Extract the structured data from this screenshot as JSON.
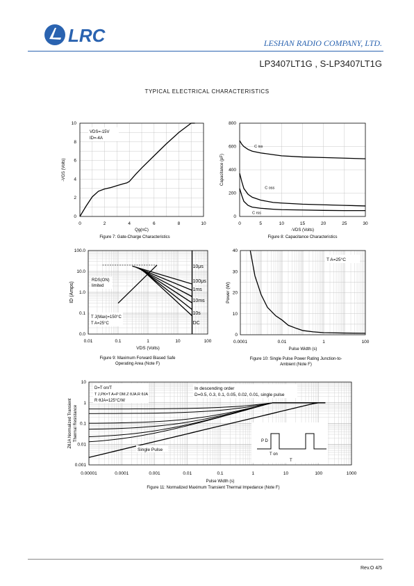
{
  "header": {
    "logo_text": "LRC",
    "company": "LESHAN RADIO COMPANY, LTD.",
    "part": "LP3407LT1G , S-LP3407LT1G"
  },
  "section_title": "TYPICAL ELECTRICAL CHARACTERISTICS",
  "chart_data": [
    {
      "id": "fig7",
      "type": "line",
      "title": "",
      "xlabel": "Qg(nC)",
      "ylabel": "-VGS (Volts)",
      "xlim": [
        0,
        10
      ],
      "ylim": [
        0,
        10
      ],
      "xticks": [
        "0",
        "2",
        "4",
        "6",
        "8",
        "10"
      ],
      "yticks": [
        "0",
        "2",
        "4",
        "6",
        "8",
        "10"
      ],
      "annotations": [
        "VDS=-15V",
        "ID=-4A"
      ],
      "caption": "Figure 7: Gate-Charge Characteristics",
      "series": [
        {
          "x": [
            0,
            0.5,
            1,
            1.5,
            2,
            2.5,
            3,
            3.5,
            3.8,
            4,
            4.5,
            5,
            6,
            7,
            8,
            9,
            9.3
          ],
          "y": [
            0,
            1.1,
            2.1,
            2.7,
            2.95,
            3.1,
            3.3,
            3.5,
            3.6,
            3.75,
            4.5,
            5.2,
            6.5,
            7.8,
            9,
            10,
            10.3
          ]
        }
      ]
    },
    {
      "id": "fig8",
      "type": "line",
      "title": "",
      "xlabel": "-VDS (Volts)",
      "ylabel": "Capacitance (pF)",
      "xlim": [
        0,
        30
      ],
      "ylim": [
        0,
        800
      ],
      "xticks": [
        "0",
        "5",
        "10",
        "15",
        "20",
        "25",
        "30"
      ],
      "yticks": [
        "0",
        "200",
        "400",
        "600",
        "800"
      ],
      "caption": "Figure 8: Capacitance Characteristics",
      "series": [
        {
          "name": "C iss",
          "x": [
            0,
            0.5,
            1,
            2,
            3,
            5,
            8,
            10,
            15,
            20,
            25,
            30
          ],
          "y": [
            650,
            620,
            600,
            575,
            560,
            545,
            530,
            520,
            510,
            505,
            500,
            495
          ]
        },
        {
          "name": "C oss",
          "x": [
            0,
            0.5,
            1,
            2,
            3,
            5,
            8,
            10,
            15,
            20,
            25,
            30
          ],
          "y": [
            370,
            300,
            240,
            190,
            165,
            140,
            120,
            115,
            105,
            100,
            95,
            90
          ]
        },
        {
          "name": "C rss",
          "x": [
            0,
            0.5,
            1,
            2,
            3,
            5,
            8,
            10,
            15,
            20,
            25,
            30
          ],
          "y": [
            240,
            180,
            130,
            95,
            80,
            70,
            62,
            58,
            55,
            52,
            50,
            50
          ]
        }
      ]
    },
    {
      "id": "fig9",
      "type": "line",
      "title": "",
      "xlabel": "VDS (Volts)",
      "ylabel": "ID (Amps)",
      "xlim": [
        0.01,
        100
      ],
      "ylim": [
        0.01,
        100
      ],
      "xticks": [
        "0.01",
        "0.1",
        "1",
        "10",
        "100"
      ],
      "yticks": [
        "0.0",
        "0.1",
        "1.0",
        "10.0",
        "100.0"
      ],
      "annotations": [
        "RDS(ON) limited",
        "T J(Max)=150°C",
        "T A=25°C"
      ],
      "legend_labels": [
        "10μs",
        "100μs",
        "1ms",
        "10ms",
        "10s",
        "DC"
      ],
      "caption": "Figure 9: Maximum Forward Biased Safe Operating Area (Note F)"
    },
    {
      "id": "fig10",
      "type": "line",
      "title": "",
      "xlabel": "Pulse Width (s)",
      "ylabel": "Power (W)",
      "xlim": [
        0.0001,
        100
      ],
      "ylim": [
        0,
        40
      ],
      "xticks": [
        "0.0001",
        "0.01",
        "1",
        "100"
      ],
      "yticks": [
        "0",
        "10",
        "20",
        "30",
        "40"
      ],
      "annotations": [
        "T A=25°C"
      ],
      "caption": "Figure 10: Single Pulse Power Rating Junction-to-Ambient (Note F)",
      "series": [
        {
          "x": [
            0.0003,
            0.0005,
            0.001,
            0.002,
            0.005,
            0.01,
            0.02,
            0.05,
            0.1,
            0.3,
            1,
            10,
            100
          ],
          "y": [
            40,
            28,
            19,
            13,
            9,
            7,
            4.5,
            3,
            2,
            1.4,
            1,
            0.8,
            0.7
          ]
        }
      ]
    },
    {
      "id": "fig11",
      "type": "line",
      "title": "",
      "xlabel": "Pulse Width (s)",
      "ylabel": "ZθJA Normalized Transient Thermal Resistance",
      "xlim": [
        1e-05,
        1000
      ],
      "ylim": [
        0.001,
        10
      ],
      "xticks": [
        "0.00001",
        "0.0001",
        "0.001",
        "0.01",
        "0.1",
        "1",
        "10",
        "100",
        "1000"
      ],
      "yticks": [
        "0.001",
        "0.01",
        "0.1",
        "1",
        "10"
      ],
      "annotations": [
        "D=T on/T",
        "T J,PK=T A+P DM.Z θJA.R θJA",
        "R θJA=125°C/W",
        "In descending order",
        "D=0.5, 0.3, 0.1, 0.05, 0.02, 0.01, single pulse",
        "Single Pulse",
        "P D",
        "T on",
        "T"
      ],
      "caption": "Figure 11: Normalized Maximum Transient Thermal Impedance (Note F)"
    }
  ],
  "footer": {
    "rev": "Rev.O  4/5"
  }
}
